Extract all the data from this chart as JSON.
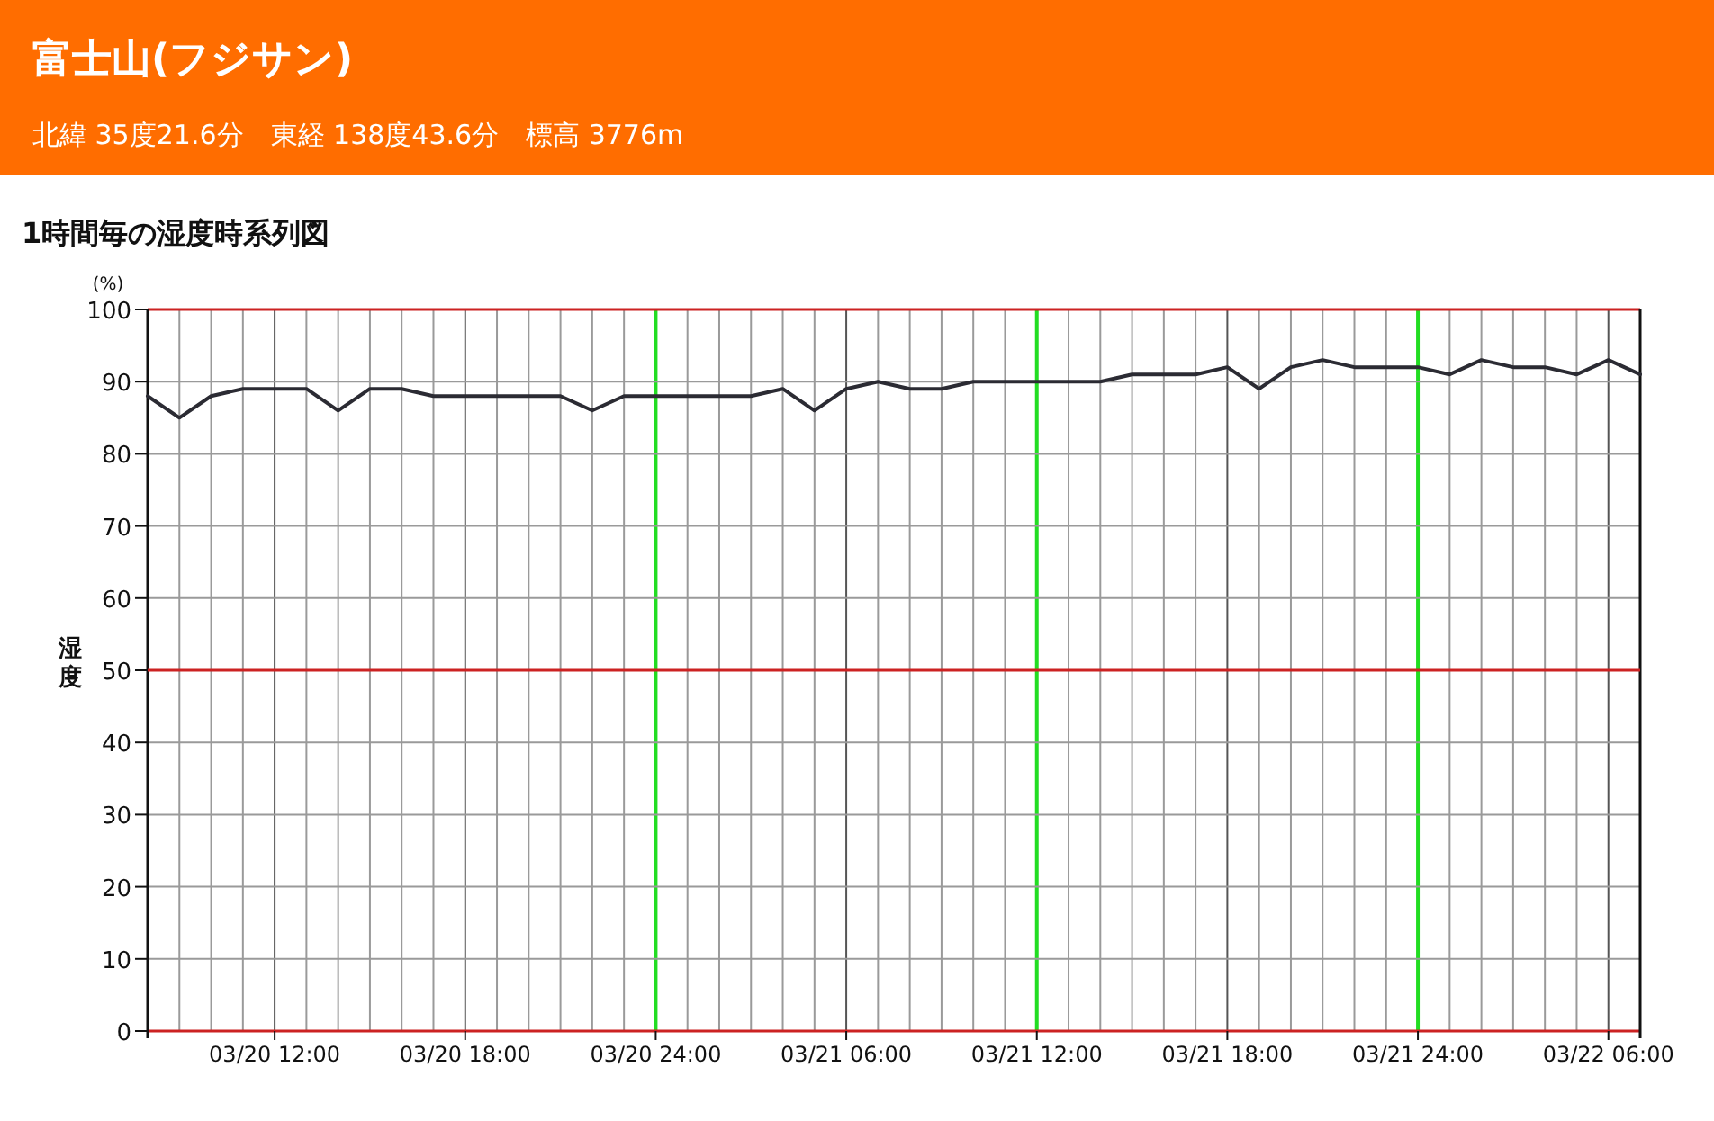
{
  "chart_data": {
    "type": "line",
    "title": "1時間毎の湿度時系列図",
    "ylabel": "湿度",
    "annotations": [
      "富士山(フジサン)",
      "北緯 35度21.6分　東経 138度43.6分　標高 3776m",
      "(%)"
    ],
    "categories": [
      null,
      null,
      null,
      null,
      "03/20 12:00",
      null,
      null,
      null,
      null,
      null,
      "03/20 18:00",
      null,
      null,
      null,
      null,
      null,
      "03/20 24:00",
      null,
      null,
      null,
      null,
      null,
      "03/21 06:00",
      null,
      null,
      null,
      null,
      null,
      "03/21 12:00",
      null,
      null,
      null,
      null,
      null,
      "03/21 18:00",
      null,
      null,
      null,
      null,
      null,
      "03/21 24:00",
      null,
      null,
      null,
      null,
      null,
      "03/22 06:00",
      null
    ],
    "series": [
      {
        "color": "#2b2b33",
        "values": [
          88,
          85,
          88,
          89,
          89,
          89,
          86,
          89,
          89,
          88,
          88,
          88,
          88,
          88,
          86,
          88,
          88,
          88,
          88,
          88,
          89,
          86,
          89,
          90,
          89,
          89,
          90,
          90,
          90,
          90,
          90,
          91,
          91,
          91,
          92,
          89,
          92,
          93,
          92,
          92,
          92,
          91,
          93,
          92,
          92,
          91,
          93,
          91
        ]
      }
    ],
    "ylim": [
      0,
      100
    ],
    "yticks": [
      0,
      10,
      20,
      30,
      40,
      50,
      60,
      70,
      80,
      90,
      100
    ],
    "grid": true,
    "marker": "none",
    "line_style": "solid",
    "ref_lines": [
      {
        "axis": "y",
        "value": 50,
        "color": "#cc2222"
      }
    ]
  }
}
